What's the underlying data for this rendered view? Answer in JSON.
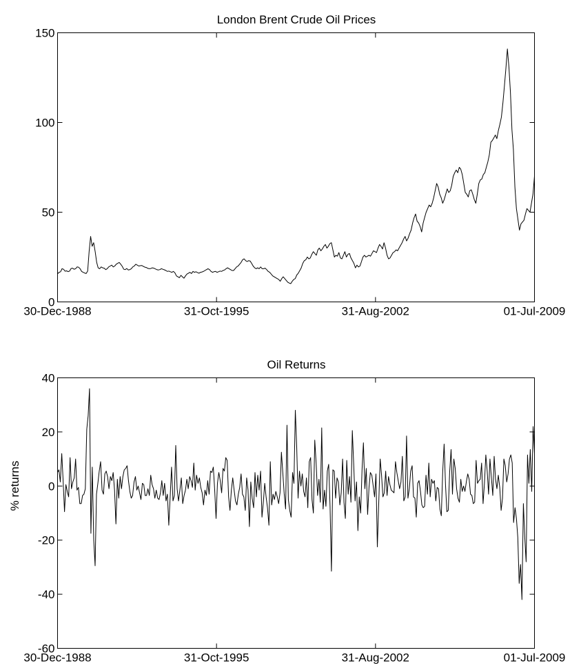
{
  "chart_data": [
    {
      "type": "line",
      "title": "London Brent Crude Oil Prices",
      "xlabel": "",
      "ylabel": "",
      "xlim": [
        "30-Dec-1988",
        "01-Jul-2009"
      ],
      "ylim": [
        0,
        150
      ],
      "x_ticks": [
        "30-Dec-1988",
        "31-Oct-1995",
        "31-Aug-2002",
        "01-Jul-2009"
      ],
      "y_ticks": [
        0,
        50,
        100,
        150
      ],
      "grid": false,
      "line_color": "#000000",
      "series": [
        {
          "x_start": "1988-12",
          "x_end": "2009-07",
          "frequency": "monthly",
          "values": [
            15.6,
            16.5,
            16.8,
            18.5,
            18.2,
            17.1,
            17.3,
            16.9,
            17.2,
            18.6,
            18.8,
            18.2,
            18.5,
            19.5,
            19.3,
            18.5,
            17.0,
            16.5,
            16.1,
            15.8,
            17.2,
            28.0,
            36.5,
            31.0,
            33.0,
            28.0,
            22.0,
            19.0,
            18.5,
            19.5,
            19.0,
            18.8,
            18.0,
            18.5,
            19.5,
            20.0,
            20.5,
            19.5,
            20.0,
            21.0,
            21.5,
            22.0,
            21.0,
            19.8,
            18.2,
            18.0,
            18.6,
            17.8,
            18.0,
            18.5,
            19.5,
            20.0,
            21.0,
            20.5,
            20.0,
            20.2,
            20.3,
            19.8,
            19.4,
            19.2,
            18.7,
            18.5,
            18.6,
            19.0,
            18.8,
            18.4,
            18.0,
            17.8,
            18.0,
            18.5,
            18.2,
            17.9,
            17.5,
            17.0,
            17.2,
            16.8,
            16.5,
            17.0,
            16.2,
            14.5,
            14.0,
            13.5,
            14.8,
            14.0,
            13.2,
            14.5,
            15.5,
            16.0,
            16.5,
            15.8,
            17.0,
            16.5,
            16.8,
            16.4,
            16.0,
            16.5,
            16.7,
            17.0,
            17.5,
            18.0,
            18.5,
            18.0,
            17.0,
            16.5,
            16.8,
            17.0,
            16.5,
            16.8,
            17.2,
            17.0,
            17.5,
            17.8,
            18.5,
            19.0,
            18.5,
            18.0,
            17.5,
            17.5,
            18.5,
            19.5,
            20.0,
            21.0,
            22.0,
            23.5,
            24.0,
            23.0,
            22.5,
            23.0,
            22.8,
            21.5,
            20.0,
            19.0,
            18.5,
            19.0,
            18.5,
            19.5,
            18.5,
            18.5,
            18.8,
            18.0,
            17.0,
            16.5,
            15.5,
            14.5,
            14.0,
            13.5,
            13.0,
            12.5,
            11.5,
            13.0,
            14.0,
            13.0,
            12.0,
            11.0,
            10.5,
            10.2,
            11.5,
            12.5,
            13.0,
            15.0,
            16.0,
            17.5,
            19.0,
            21.5,
            23.0,
            23.5,
            25.0,
            24.0,
            24.5,
            26.5,
            28.0,
            27.0,
            26.0,
            29.0,
            30.0,
            28.5,
            29.5,
            31.0,
            32.0,
            30.0,
            31.0,
            32.5,
            33.0,
            29.0,
            25.0,
            26.0,
            25.5,
            27.5,
            24.5,
            24.0,
            26.0,
            28.0,
            25.0,
            26.5,
            27.0,
            24.5,
            23.0,
            21.5,
            19.0,
            20.5,
            19.5,
            20.0,
            22.5,
            25.0,
            26.0,
            25.0,
            25.5,
            26.0,
            25.5,
            27.0,
            28.5,
            28.0,
            27.5,
            30.0,
            32.0,
            31.0,
            29.5,
            33.0,
            30.0,
            26.0,
            24.0,
            24.5,
            26.0,
            27.5,
            28.0,
            29.0,
            28.5,
            30.0,
            31.5,
            33.0,
            35.0,
            36.5,
            34.0,
            35.5,
            38.0,
            40.0,
            44.0,
            47.0,
            49.0,
            45.0,
            44.0,
            42.0,
            39.0,
            44.0,
            47.0,
            50.0,
            52.0,
            54.0,
            53.0,
            55.0,
            58.0,
            62.0,
            66.0,
            64.0,
            60.0,
            58.0,
            55.0,
            57.0,
            60.0,
            63.0,
            61.0,
            62.0,
            65.0,
            70.0,
            72.0,
            73.5,
            72.0,
            75.0,
            74.0,
            71.0,
            66.0,
            61.0,
            60.0,
            58.5,
            62.0,
            62.5,
            60.0,
            57.0,
            55.0,
            60.0,
            66.0,
            68.0,
            68.5,
            71.0,
            72.0,
            75.0,
            78.0,
            82.0,
            89.0,
            90.0,
            91.5,
            93.0,
            91.0,
            95.5,
            99.0,
            103.0,
            111.0,
            120.0,
            130.0,
            141.0,
            131.0,
            117.0,
            96.0,
            85.0,
            64.0,
            52.0,
            46.0,
            40.0,
            43.5,
            44.5,
            45.5,
            49.0,
            52.0,
            51.0,
            50.0,
            55.0,
            60.0,
            70.0
          ]
        }
      ]
    },
    {
      "type": "line",
      "title": "Oil Returns",
      "xlabel": "",
      "ylabel": "% returns",
      "xlim": [
        "30-Dec-1988",
        "01-Jul-2009"
      ],
      "ylim": [
        -60,
        40
      ],
      "x_ticks": [
        "30-Dec-1988",
        "31-Oct-1995",
        "31-Aug-2002",
        "01-Jul-2009"
      ],
      "y_ticks": [
        -60,
        -40,
        -20,
        0,
        20,
        40
      ],
      "grid": false,
      "line_color": "#000000",
      "series": [
        {
          "x_start": "1989-01",
          "x_end": "2009-07",
          "frequency": "monthly",
          "values": [
            5.0,
            6.0,
            1.5,
            12.0,
            2.0,
            -9.5,
            0.5,
            -2.0,
            -4.0,
            10.5,
            -1.0,
            1.5,
            3.0,
            10.0,
            -1.5,
            -0.5,
            -6.5,
            -6.5,
            -3.5,
            -3.0,
            -1.0,
            21.0,
            26.0,
            36.0,
            -17.5,
            7.0,
            -20.0,
            -29.5,
            -3.0,
            1.0,
            5.5,
            9.0,
            -1.5,
            -3.0,
            4.5,
            5.5,
            3.5,
            -1.0,
            3.5,
            2.0,
            5.0,
            -1.5,
            -14.0,
            2.5,
            -4.5,
            3.5,
            -1.0,
            3.5,
            6.0,
            6.5,
            7.5,
            2.0,
            -2.0,
            -4.5,
            -3.5,
            1.5,
            3.5,
            -1.5,
            0.0,
            -2.5,
            -5.0,
            1.0,
            0.5,
            -3.5,
            -3.5,
            -1.0,
            -3.5,
            4.0,
            0.5,
            -1.0,
            -4.5,
            -1.5,
            -4.5,
            -5.0,
            -2.5,
            2.0,
            -3.5,
            1.0,
            -5.5,
            -3.0,
            -14.5,
            -4.0,
            7.0,
            -5.5,
            -3.5,
            15.0,
            -1.0,
            -5.5,
            -1.5,
            3.0,
            -6.5,
            -3.5,
            -1.5,
            2.5,
            -1.0,
            3.5,
            2.0,
            -0.5,
            8.5,
            -1.5,
            4.0,
            1.0,
            3.0,
            -0.5,
            -2.5,
            -7.0,
            -1.5,
            -3.5,
            2.0,
            -3.0,
            5.5,
            5.0,
            7.0,
            -1.5,
            -12.0,
            1.0,
            5.0,
            2.0,
            -2.5,
            6.5,
            5.5,
            10.5,
            9.5,
            -4.0,
            -9.0,
            -1.5,
            3.0,
            -1.5,
            -5.5,
            -7.0,
            -3.0,
            -0.5,
            4.5,
            -3.0,
            -4.0,
            -9.0,
            3.0,
            -1.5,
            -15.0,
            1.5,
            -4.5,
            -8.0,
            5.0,
            -4.0,
            4.0,
            -1.5,
            5.5,
            -11.5,
            -6.0,
            1.0,
            -4.0,
            -8.0,
            -14.5,
            9.0,
            -7.0,
            -3.0,
            -5.0,
            -2.0,
            -4.0,
            -6.5,
            -2.5,
            12.5,
            5.0,
            -3.0,
            -8.5,
            22.5,
            -5.0,
            -9.0,
            -11.5,
            5.0,
            1.0,
            28.0,
            14.5,
            -4.5,
            5.5,
            0.0,
            4.5,
            -2.0,
            -4.0,
            3.0,
            -8.0,
            9.0,
            10.5,
            -5.0,
            -10.0,
            17.0,
            8.0,
            -3.5,
            2.5,
            -6.0,
            21.5,
            -8.5,
            -1.5,
            -7.5,
            5.5,
            8.0,
            -7.5,
            -31.5,
            6.0,
            5.5,
            -4.5,
            3.0,
            1.5,
            -7.0,
            -2.5,
            10.0,
            -6.0,
            -12.0,
            9.5,
            -3.0,
            3.5,
            -6.0,
            20.5,
            8.0,
            -5.5,
            1.5,
            -16.5,
            -4.0,
            -10.0,
            6.0,
            16.0,
            -1.0,
            6.5,
            -10.5,
            -0.5,
            5.0,
            4.0,
            0.0,
            -4.0,
            4.5,
            -22.5,
            -6.5,
            10.0,
            4.0,
            -4.0,
            -2.5,
            5.5,
            -3.5,
            3.5,
            0.5,
            -1.5,
            -2.0,
            -2.5,
            9.0,
            5.0,
            2.0,
            -1.0,
            1.5,
            11.0,
            -5.5,
            -4.0,
            18.5,
            -4.5,
            -1.0,
            5.5,
            7.5,
            -4.0,
            -4.5,
            -11.5,
            1.0,
            2.0,
            -2.0,
            -7.0,
            -8.0,
            -7.5,
            4.0,
            -3.0,
            8.5,
            -4.0,
            2.5,
            1.0,
            2.0,
            -5.5,
            -0.5,
            -1.0,
            -8.5,
            -11.0,
            5.0,
            15.5,
            0.5,
            -9.5,
            -9.0,
            5.0,
            13.5,
            -3.0,
            10.0,
            6.5,
            -1.0,
            -4.5,
            -6.0,
            2.5,
            -2.0,
            0.0,
            -2.0,
            1.5,
            4.5,
            2.5,
            -3.0,
            -3.5,
            -6.5,
            -6.0,
            9.5,
            1.0,
            2.0,
            2.5,
            8.5,
            -6.5,
            1.0,
            11.5,
            5.5,
            -3.0,
            10.0,
            3.0,
            -3.5,
            11.0,
            2.5,
            -1.0,
            4.0,
            -0.5,
            -9.0,
            -4.5,
            10.0,
            7.5,
            1.5,
            4.5,
            10.0,
            11.5,
            8.5,
            -13.5,
            -8.0,
            -12.0,
            -19.0,
            -36.0,
            -29.0,
            -42.0,
            -6.5,
            -19.0,
            -28.0,
            11.5,
            1.0,
            13.5,
            -2.0,
            22.0,
            12.0
          ]
        }
      ]
    }
  ]
}
